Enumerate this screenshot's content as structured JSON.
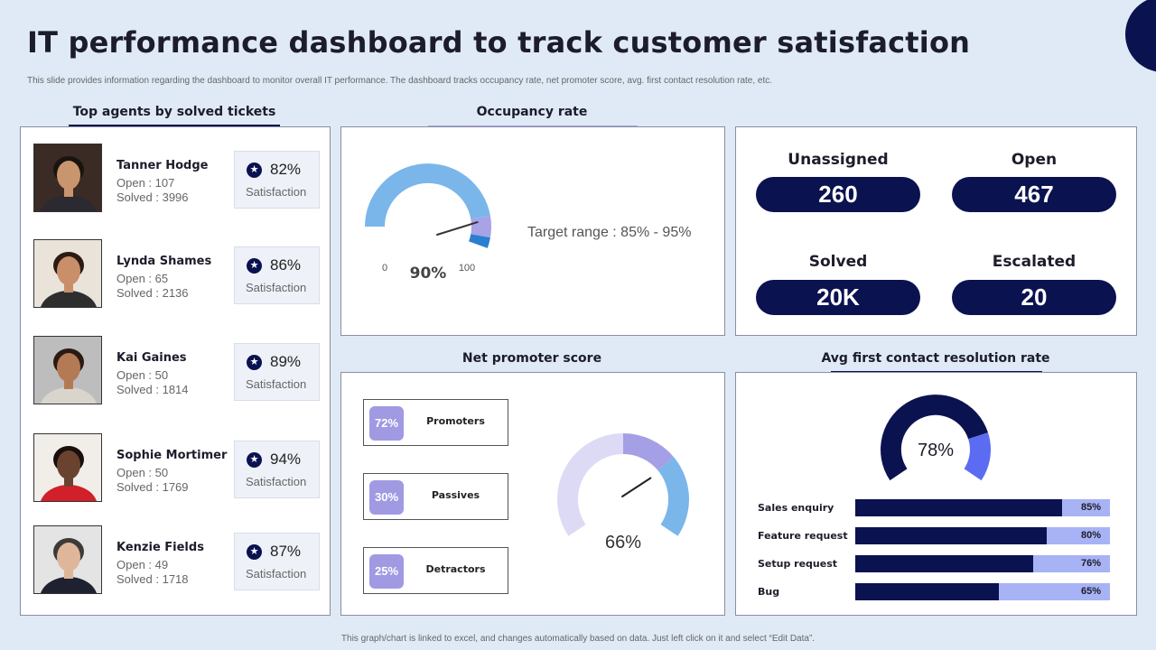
{
  "header": {
    "title": "IT performance dashboard to track customer satisfaction",
    "subtitle": "This slide provides information regarding the dashboard to monitor overall IT performance. The dashboard tracks occupancy rate, net promoter score, avg. first contact resolution rate, etc."
  },
  "footer": "This graph/chart is linked to excel, and changes automatically based on data. Just left click on it and select “Edit Data”.",
  "agents": {
    "title": "Top agents by solved tickets",
    "satisfaction_label": "Satisfaction",
    "items": [
      {
        "name": "Tanner Hodge",
        "open": "Open  : 107",
        "solved": "Solved  : 3996",
        "satisfaction": "82%"
      },
      {
        "name": "Lynda Shames",
        "open": "Open  : 65",
        "solved": "Solved  : 2136",
        "satisfaction": "86%"
      },
      {
        "name": "Kai Gaines",
        "open": "Open  : 50",
        "solved": "Solved  : 1814",
        "satisfaction": "89%"
      },
      {
        "name": "Sophie Mortimer",
        "open": "Open  : 50",
        "solved": "Solved  : 1769",
        "satisfaction": "94%"
      },
      {
        "name": "Kenzie Fields",
        "open": "Open  : 49",
        "solved": "Solved  : 1718",
        "satisfaction": "87%"
      }
    ]
  },
  "occupancy": {
    "title": "Occupancy rate",
    "value_label": "90%",
    "value": 90,
    "min_label": "0",
    "max_label": "100",
    "target": "Target range : 85% - 95%"
  },
  "stats": {
    "unassigned_label": "Unassigned",
    "unassigned_value": "260",
    "open_label": "Open",
    "open_value": "467",
    "solved_label": "Solved",
    "solved_value": "20K",
    "escalated_label": "Escalated",
    "escalated_value": "20"
  },
  "nps": {
    "title": "Net promoter score",
    "score_label": "66%",
    "score": 66,
    "items": [
      {
        "pct": "72%",
        "label": "Promoters"
      },
      {
        "pct": "30%",
        "label": "Passives"
      },
      {
        "pct": "25%",
        "label": "Detractors"
      }
    ]
  },
  "fcr": {
    "title": "Avg first contact resolution rate",
    "value_label": "78%",
    "value": 78,
    "bars": [
      {
        "label": "Sales enquiry",
        "value_label": "85%",
        "value": 85
      },
      {
        "label": "Feature request",
        "value_label": "80%",
        "value": 80
      },
      {
        "label": "Setup request",
        "value_label": "76%",
        "value": 76
      },
      {
        "label": "Bug",
        "value_label": "65%",
        "value": 65
      }
    ]
  },
  "colors": {
    "navy": "#0b1250",
    "gauge_light_blue": "#7ab6ea",
    "gauge_lavender": "#a8a2e6",
    "gauge_blue": "#2a7fd0",
    "nps_lilac": "#dcdaf5",
    "nps_purple": "#a59fe5",
    "fcr_blue": "#5b6cf3"
  }
}
